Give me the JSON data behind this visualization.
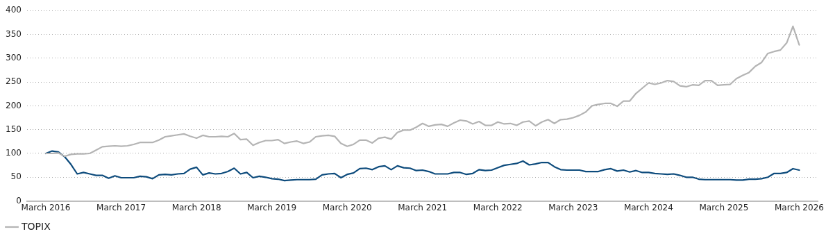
{
  "chart_data": {
    "type": "line",
    "x": [
      "2016-03",
      "2016-04",
      "2016-05",
      "2016-06",
      "2016-07",
      "2016-08",
      "2016-09",
      "2016-10",
      "2016-11",
      "2016-12",
      "2017-01",
      "2017-02",
      "2017-03",
      "2017-04",
      "2017-05",
      "2017-06",
      "2017-07",
      "2017-08",
      "2017-09",
      "2017-10",
      "2017-11",
      "2017-12",
      "2018-01",
      "2018-02",
      "2018-03",
      "2018-04",
      "2018-05",
      "2018-06",
      "2018-07",
      "2018-08",
      "2018-09",
      "2018-10",
      "2018-11",
      "2018-12",
      "2019-01",
      "2019-02",
      "2019-03",
      "2019-04",
      "2019-05",
      "2019-06",
      "2019-07",
      "2019-08",
      "2019-09",
      "2019-10",
      "2019-11",
      "2019-12",
      "2020-01",
      "2020-02",
      "2020-03",
      "2020-04",
      "2020-05",
      "2020-06",
      "2020-07",
      "2020-08",
      "2020-09",
      "2020-10",
      "2020-11",
      "2020-12",
      "2021-01",
      "2021-02",
      "2021-03",
      "2021-04",
      "2021-05",
      "2021-06",
      "2021-07",
      "2021-08",
      "2021-09",
      "2021-10",
      "2021-11",
      "2021-12",
      "2022-01",
      "2022-02",
      "2022-03",
      "2022-04",
      "2022-05",
      "2022-06",
      "2022-07",
      "2022-08",
      "2022-09",
      "2022-10",
      "2022-11",
      "2022-12",
      "2023-01",
      "2023-02",
      "2023-03",
      "2023-04",
      "2023-05",
      "2023-06",
      "2023-07",
      "2023-08",
      "2023-09",
      "2023-10",
      "2023-11",
      "2023-12",
      "2024-01",
      "2024-02",
      "2024-03",
      "2024-04",
      "2024-05",
      "2024-06",
      "2024-07",
      "2024-08",
      "2024-09",
      "2024-10",
      "2024-11",
      "2024-12",
      "2025-01",
      "2025-02",
      "2025-03",
      "2025-04",
      "2025-05",
      "2025-06",
      "2025-07",
      "2025-08",
      "2025-09",
      "2025-10",
      "2025-11",
      "2025-12",
      "2026-01",
      "2026-02",
      "2026-03"
    ],
    "series": [
      {
        "color": "#0d4b7c",
        "values": [
          100,
          105,
          103,
          93,
          77,
          57,
          60,
          57,
          54,
          54,
          48,
          53,
          49,
          49,
          49,
          52,
          51,
          47,
          55,
          56,
          55,
          57,
          58,
          67,
          71,
          55,
          59,
          57,
          58,
          62,
          69,
          57,
          60,
          49,
          52,
          50,
          47,
          46,
          43,
          44,
          45,
          45,
          45,
          46,
          55,
          57,
          58,
          49,
          56,
          59,
          68,
          69,
          66,
          72,
          74,
          66,
          74,
          70,
          69,
          64,
          65,
          62,
          57,
          57,
          57,
          60,
          60,
          56,
          58,
          66,
          64,
          65,
          70,
          75,
          77,
          79,
          84,
          76,
          78,
          81,
          81,
          72,
          66,
          65,
          65,
          65,
          62,
          62,
          62,
          66,
          68,
          63,
          65,
          61,
          64,
          60,
          60,
          58,
          57,
          56,
          57,
          54,
          50,
          50,
          46,
          45,
          45,
          45,
          45,
          45,
          44,
          44,
          46,
          46,
          47,
          50,
          58,
          58,
          60,
          68,
          65
        ]
      },
      {
        "name": "TOPIX",
        "color": "#b4b4b4",
        "values": [
          100,
          100,
          101,
          94,
          98,
          99,
          99,
          100,
          107,
          114,
          115,
          116,
          115,
          116,
          119,
          123,
          123,
          123,
          128,
          135,
          137,
          139,
          141,
          136,
          132,
          138,
          135,
          135,
          136,
          135,
          142,
          129,
          130,
          117,
          123,
          127,
          127,
          129,
          121,
          124,
          126,
          121,
          124,
          135,
          137,
          138,
          136,
          121,
          115,
          119,
          128,
          128,
          122,
          132,
          134,
          130,
          144,
          149,
          149,
          155,
          163,
          157,
          160,
          161,
          157,
          164,
          170,
          168,
          162,
          167,
          159,
          159,
          166,
          162,
          163,
          159,
          166,
          168,
          158,
          166,
          171,
          163,
          171,
          172,
          175,
          180,
          187,
          200,
          203,
          205,
          205,
          199,
          210,
          210,
          226,
          237,
          248,
          245,
          248,
          253,
          251,
          242,
          240,
          244,
          243,
          253,
          253,
          243,
          244,
          245,
          257,
          264,
          270,
          283,
          291,
          310,
          314,
          317,
          332,
          367,
          328
        ]
      }
    ],
    "xlim": [
      "2015-12",
      "2026-06"
    ],
    "xticks": [
      {
        "value": "2016-03",
        "label": "March 2016"
      },
      {
        "value": "2017-03",
        "label": "March 2017"
      },
      {
        "value": "2018-03",
        "label": "March 2018"
      },
      {
        "value": "2019-03",
        "label": "March 2019"
      },
      {
        "value": "2020-03",
        "label": "March 2020"
      },
      {
        "value": "2021-03",
        "label": "March 2021"
      },
      {
        "value": "2022-03",
        "label": "March 2022"
      },
      {
        "value": "2023-03",
        "label": "March 2023"
      },
      {
        "value": "2024-03",
        "label": "March 2024"
      },
      {
        "value": "2025-03",
        "label": "March 2025"
      },
      {
        "value": "2026-03",
        "label": "March 2026"
      }
    ],
    "ylim": [
      0,
      400
    ],
    "yticks": [
      0,
      50,
      100,
      150,
      200,
      250,
      300,
      350,
      400
    ],
    "grid": "y",
    "legend": "bottom left",
    "marker": "none",
    "line_style": "solid"
  }
}
